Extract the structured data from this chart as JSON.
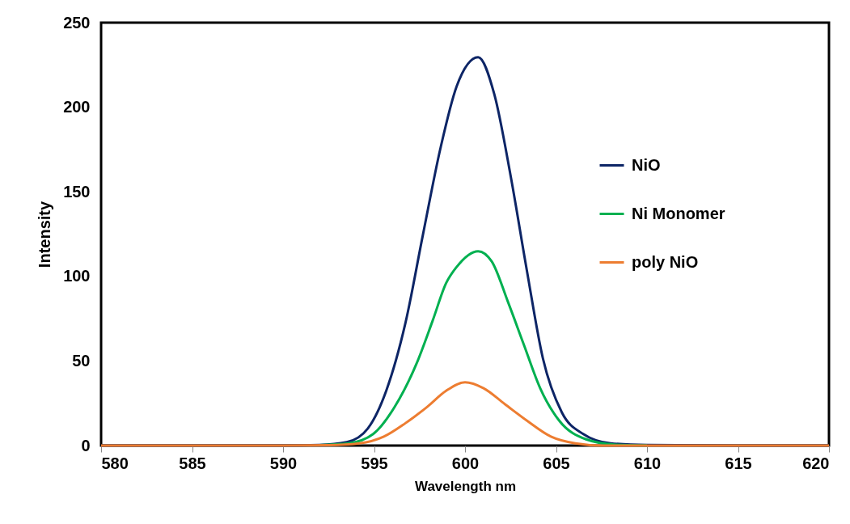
{
  "chart_data": {
    "type": "line",
    "xlabel": "Wavelength nm",
    "ylabel": "Intensity",
    "xlim": [
      580,
      620
    ],
    "xticks": [
      580,
      585,
      590,
      595,
      600,
      605,
      610,
      615,
      620
    ],
    "ylim": [
      0,
      250
    ],
    "yticks": [
      0,
      50,
      100,
      150,
      200,
      250
    ],
    "grid": false,
    "legend": "right",
    "marker": "none",
    "line_style": "solid",
    "series": [
      {
        "name": "NiO",
        "color": "#0d2566",
        "x": [
          580,
          590,
          592,
          593.5,
          594.65,
          595.67,
          596.72,
          597.69,
          598.65,
          599.54,
          600.72,
          601.61,
          602.5,
          603.39,
          604.28,
          605.32,
          606.5,
          608,
          610,
          615,
          620
        ],
        "values": [
          0,
          0,
          0.3,
          2,
          10,
          32.4,
          72.2,
          124.8,
          175.8,
          212.4,
          229.6,
          207.6,
          159.8,
          104,
          51.5,
          19.6,
          6.8,
          1.3,
          0.3,
          0,
          0
        ]
      },
      {
        "name": "Ni Monomer",
        "color": "#00b050",
        "x": [
          592,
          593.6,
          594.95,
          596.13,
          597.33,
          598.22,
          598.96,
          599.54,
          600.72,
          601.47,
          602.36,
          603.24,
          604.13,
          605.17,
          606.65,
          608.3,
          610
        ],
        "values": [
          0.2,
          1.3,
          6.8,
          22.8,
          48.3,
          73.8,
          96,
          105.6,
          114.9,
          108.8,
          84.9,
          59.4,
          33.9,
          14.8,
          3.7,
          0.5,
          0.1
        ]
      },
      {
        "name": "poly NiO",
        "color": "#ed7d31",
        "x": [
          580,
          590,
          592.5,
          594.2,
          595.54,
          596.72,
          597.91,
          598.96,
          600,
          601.02,
          602.2,
          603.39,
          604.72,
          606.06,
          607.5,
          610,
          615,
          620
        ],
        "values": [
          0,
          0,
          0.2,
          1.3,
          5.3,
          13.2,
          22.8,
          32.4,
          37.4,
          33.9,
          24.4,
          14.8,
          5.3,
          1.3,
          0,
          0,
          0,
          0
        ]
      }
    ]
  }
}
